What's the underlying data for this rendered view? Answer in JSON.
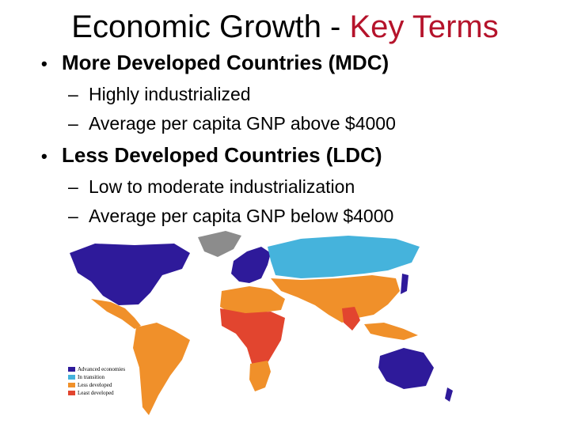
{
  "title": {
    "main": "Economic Growth - ",
    "accent": "Key Terms",
    "accent_color": "#b5132b"
  },
  "sections": [
    {
      "heading": "More Developed Countries (MDC)",
      "points": [
        "Highly industrialized",
        "Average per capita GNP above $4000"
      ]
    },
    {
      "heading": "Less Developed Countries (LDC)",
      "points": [
        "Low to moderate industrialization",
        "Average per capita GNP below $4000"
      ]
    }
  ],
  "symbols": {
    "bullet": "•",
    "dash": "–"
  },
  "map": {
    "legend": [
      {
        "label": "Advanced economies",
        "color": "#2e1a9a"
      },
      {
        "label": "In transition",
        "color": "#45b3dc"
      },
      {
        "label": "Less developed",
        "color": "#f0902a"
      },
      {
        "label": "Least developed",
        "color": "#e2452f"
      }
    ]
  }
}
